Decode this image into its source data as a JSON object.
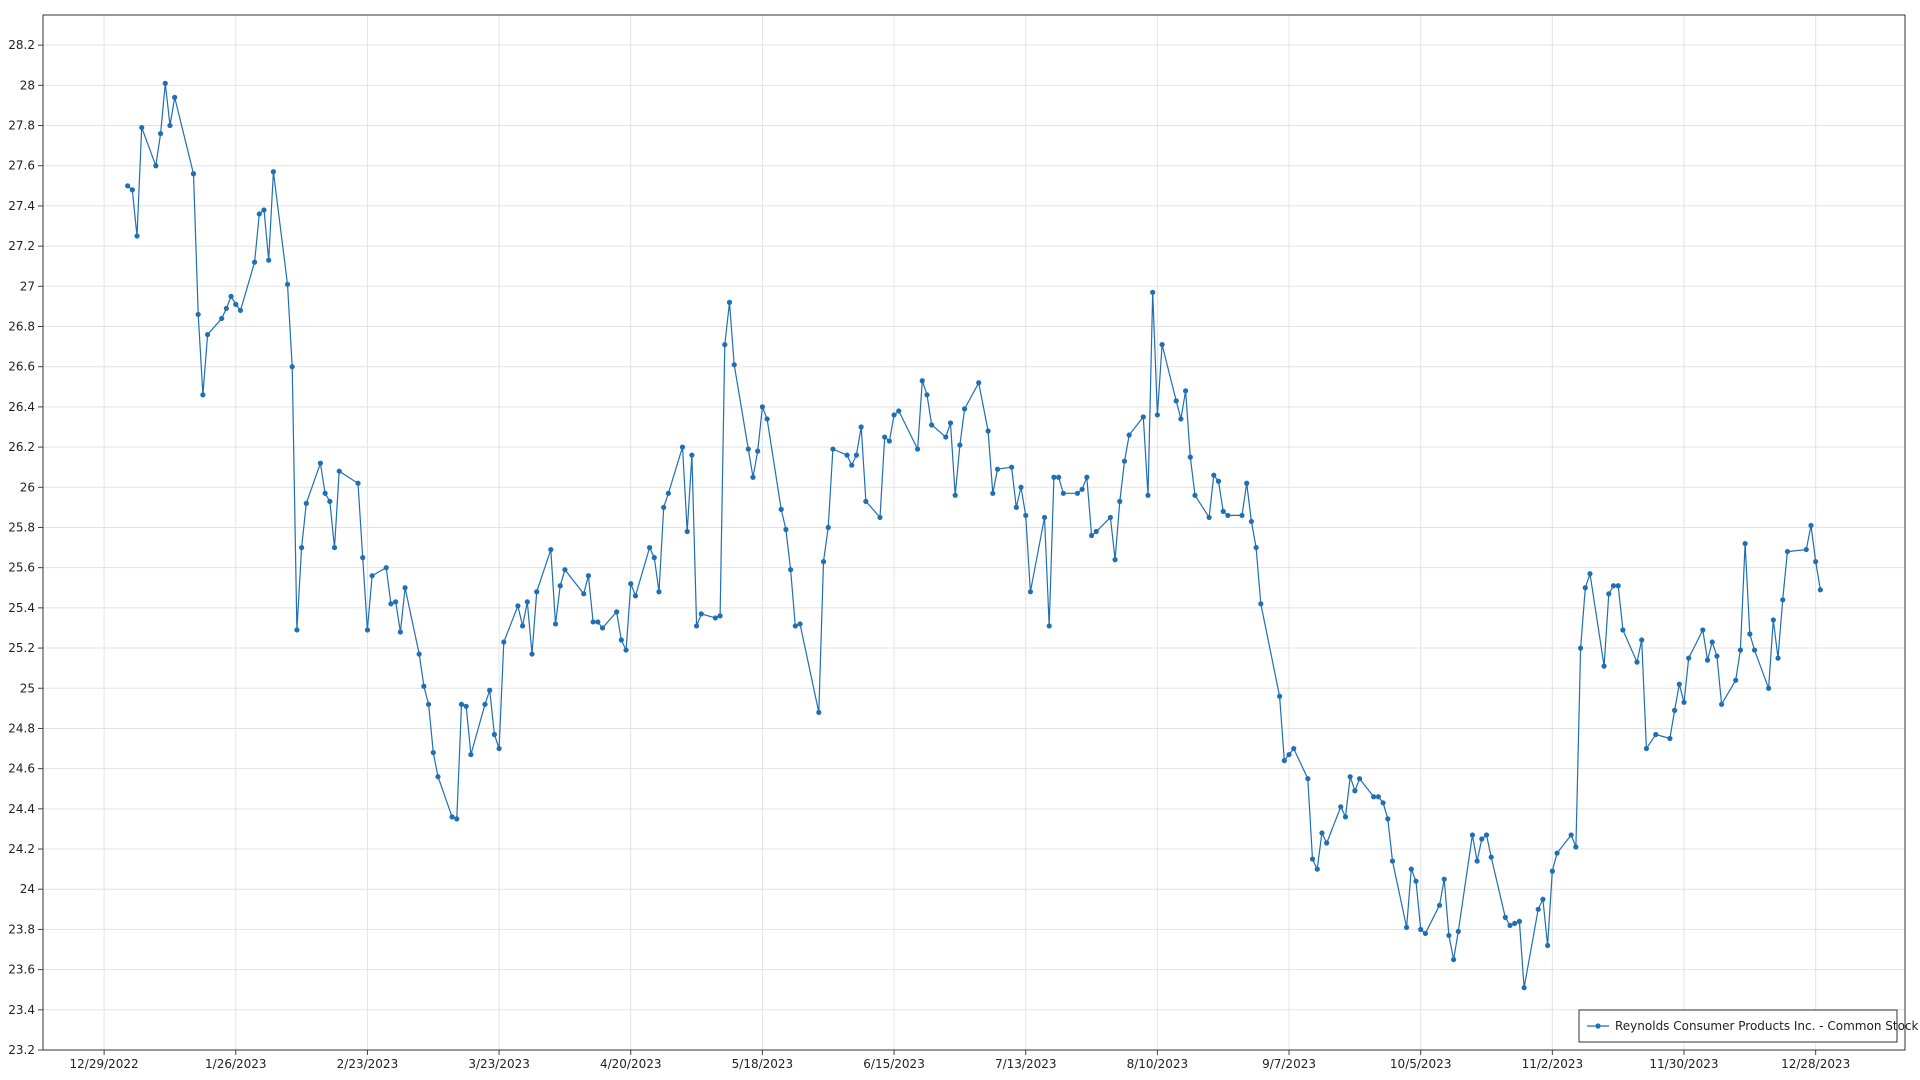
{
  "chart_data": {
    "type": "line",
    "grid": true,
    "legend": "lower right",
    "xlim": [
      "12/16/2022",
      "1/16/2024"
    ],
    "xticks": [
      "12/29/2022",
      "1/26/2023",
      "2/23/2023",
      "3/23/2023",
      "4/20/2023",
      "5/18/2023",
      "6/15/2023",
      "7/13/2023",
      "8/10/2023",
      "9/7/2023",
      "10/5/2023",
      "11/2/2023",
      "11/30/2023",
      "12/28/2023"
    ],
    "ylim": [
      23.2,
      28.35
    ],
    "yticks": [
      23.2,
      23.4,
      23.6,
      23.8,
      24,
      24.2,
      24.4,
      24.6,
      24.8,
      25,
      25.2,
      25.4,
      25.6,
      25.8,
      26,
      26.2,
      26.4,
      26.6,
      26.8,
      27,
      27.2,
      27.4,
      27.6,
      27.8,
      28,
      28.2
    ],
    "series": [
      {
        "name": "Reynolds Consumer Products Inc. - Common Stock",
        "color": "#1f6fb4",
        "x": [
          "1/3/2023",
          "1/4/2023",
          "1/5/2023",
          "1/6/2023",
          "1/9/2023",
          "1/10/2023",
          "1/11/2023",
          "1/12/2023",
          "1/13/2023",
          "1/17/2023",
          "1/18/2023",
          "1/19/2023",
          "1/20/2023",
          "1/23/2023",
          "1/24/2023",
          "1/25/2023",
          "1/26/2023",
          "1/27/2023",
          "1/30/2023",
          "1/31/2023",
          "2/1/2023",
          "2/2/2023",
          "2/3/2023",
          "2/6/2023",
          "2/7/2023",
          "2/8/2023",
          "2/9/2023",
          "2/10/2023",
          "2/13/2023",
          "2/14/2023",
          "2/15/2023",
          "2/16/2023",
          "2/17/2023",
          "2/21/2023",
          "2/22/2023",
          "2/23/2023",
          "2/24/2023",
          "2/27/2023",
          "2/28/2023",
          "3/1/2023",
          "3/2/2023",
          "3/3/2023",
          "3/6/2023",
          "3/7/2023",
          "3/8/2023",
          "3/9/2023",
          "3/10/2023",
          "3/13/2023",
          "3/14/2023",
          "3/15/2023",
          "3/16/2023",
          "3/17/2023",
          "3/20/2023",
          "3/21/2023",
          "3/22/2023",
          "3/23/2023",
          "3/24/2023",
          "3/27/2023",
          "3/28/2023",
          "3/29/2023",
          "3/30/2023",
          "3/31/2023",
          "4/3/2023",
          "4/4/2023",
          "4/5/2023",
          "4/6/2023",
          "4/10/2023",
          "4/11/2023",
          "4/12/2023",
          "4/13/2023",
          "4/14/2023",
          "4/17/2023",
          "4/18/2023",
          "4/19/2023",
          "4/20/2023",
          "4/21/2023",
          "4/24/2023",
          "4/25/2023",
          "4/26/2023",
          "4/27/2023",
          "4/28/2023",
          "5/1/2023",
          "5/2/2023",
          "5/3/2023",
          "5/4/2023",
          "5/5/2023",
          "5/8/2023",
          "5/9/2023",
          "5/10/2023",
          "5/11/2023",
          "5/12/2023",
          "5/15/2023",
          "5/16/2023",
          "5/17/2023",
          "5/18/2023",
          "5/19/2023",
          "5/22/2023",
          "5/23/2023",
          "5/24/2023",
          "5/25/2023",
          "5/26/2023",
          "5/30/2023",
          "5/31/2023",
          "6/1/2023",
          "6/2/2023",
          "6/5/2023",
          "6/6/2023",
          "6/7/2023",
          "6/8/2023",
          "6/9/2023",
          "6/12/2023",
          "6/13/2023",
          "6/14/2023",
          "6/15/2023",
          "6/16/2023",
          "6/20/2023",
          "6/21/2023",
          "6/22/2023",
          "6/23/2023",
          "6/26/2023",
          "6/27/2023",
          "6/28/2023",
          "6/29/2023",
          "6/30/2023",
          "7/3/2023",
          "7/5/2023",
          "7/6/2023",
          "7/7/2023",
          "7/10/2023",
          "7/11/2023",
          "7/12/2023",
          "7/13/2023",
          "7/14/2023",
          "7/17/2023",
          "7/18/2023",
          "7/19/2023",
          "7/20/2023",
          "7/21/2023",
          "7/24/2023",
          "7/25/2023",
          "7/26/2023",
          "7/27/2023",
          "7/28/2023",
          "7/31/2023",
          "8/1/2023",
          "8/2/2023",
          "8/3/2023",
          "8/4/2023",
          "8/7/2023",
          "8/8/2023",
          "8/9/2023",
          "8/10/2023",
          "8/11/2023",
          "8/14/2023",
          "8/15/2023",
          "8/16/2023",
          "8/17/2023",
          "8/18/2023",
          "8/21/2023",
          "8/22/2023",
          "8/23/2023",
          "8/24/2023",
          "8/25/2023",
          "8/28/2023",
          "8/29/2023",
          "8/30/2023",
          "8/31/2023",
          "9/1/2023",
          "9/5/2023",
          "9/6/2023",
          "9/7/2023",
          "9/8/2023",
          "9/11/2023",
          "9/12/2023",
          "9/13/2023",
          "9/14/2023",
          "9/15/2023",
          "9/18/2023",
          "9/19/2023",
          "9/20/2023",
          "9/21/2023",
          "9/22/2023",
          "9/25/2023",
          "9/26/2023",
          "9/27/2023",
          "9/28/2023",
          "9/29/2023",
          "10/2/2023",
          "10/3/2023",
          "10/4/2023",
          "10/5/2023",
          "10/6/2023",
          "10/9/2023",
          "10/10/2023",
          "10/11/2023",
          "10/12/2023",
          "10/13/2023",
          "10/16/2023",
          "10/17/2023",
          "10/18/2023",
          "10/19/2023",
          "10/20/2023",
          "10/23/2023",
          "10/24/2023",
          "10/25/2023",
          "10/26/2023",
          "10/27/2023",
          "10/30/2023",
          "10/31/2023",
          "11/1/2023",
          "11/2/2023",
          "11/3/2023",
          "11/6/2023",
          "11/7/2023",
          "11/8/2023",
          "11/9/2023",
          "11/10/2023",
          "11/13/2023",
          "11/14/2023",
          "11/15/2023",
          "11/16/2023",
          "11/17/2023",
          "11/20/2023",
          "11/21/2023",
          "11/22/2023",
          "11/24/2023",
          "11/27/2023",
          "11/28/2023",
          "11/29/2023",
          "11/30/2023",
          "12/1/2023",
          "12/4/2023",
          "12/5/2023",
          "12/6/2023",
          "12/7/2023",
          "12/8/2023",
          "12/11/2023",
          "12/12/2023",
          "12/13/2023",
          "12/14/2023",
          "12/15/2023",
          "12/18/2023",
          "12/19/2023",
          "12/20/2023",
          "12/21/2023",
          "12/22/2023",
          "12/26/2023",
          "12/27/2023",
          "12/28/2023",
          "12/29/2023"
        ],
        "values": [
          27.5,
          27.48,
          27.25,
          27.79,
          27.6,
          27.76,
          28.01,
          27.8,
          27.94,
          27.56,
          26.86,
          26.46,
          26.76,
          26.84,
          26.89,
          26.95,
          26.91,
          26.88,
          27.12,
          27.36,
          27.38,
          27.13,
          27.57,
          27.01,
          26.6,
          25.29,
          25.7,
          25.92,
          26.12,
          25.97,
          25.93,
          25.7,
          26.08,
          26.02,
          25.65,
          25.29,
          25.56,
          25.6,
          25.42,
          25.43,
          25.28,
          25.5,
          25.17,
          25.01,
          24.92,
          24.68,
          24.56,
          24.36,
          24.35,
          24.92,
          24.91,
          24.67,
          24.92,
          24.99,
          24.77,
          24.7,
          25.23,
          25.41,
          25.31,
          25.43,
          25.17,
          25.48,
          25.69,
          25.32,
          25.51,
          25.59,
          25.47,
          25.56,
          25.33,
          25.33,
          25.3,
          25.38,
          25.24,
          25.19,
          25.52,
          25.46,
          25.7,
          25.65,
          25.48,
          25.9,
          25.97,
          26.2,
          25.78,
          26.16,
          25.31,
          25.37,
          25.35,
          25.36,
          26.71,
          26.92,
          26.61,
          26.19,
          26.05,
          26.18,
          26.4,
          26.34,
          25.89,
          25.79,
          25.59,
          25.31,
          25.32,
          24.88,
          25.63,
          25.8,
          26.19,
          26.16,
          26.11,
          26.16,
          26.3,
          25.93,
          25.85,
          26.25,
          26.23,
          26.36,
          26.38,
          26.19,
          26.53,
          26.46,
          26.31,
          26.25,
          26.32,
          25.96,
          26.21,
          26.39,
          26.52,
          26.28,
          25.97,
          26.09,
          26.1,
          25.9,
          26,
          25.86,
          25.48,
          25.85,
          25.31,
          26.05,
          26.05,
          25.97,
          25.97,
          25.99,
          26.05,
          25.76,
          25.78,
          25.85,
          25.64,
          25.93,
          26.13,
          26.26,
          26.35,
          25.96,
          26.97,
          26.36,
          26.71,
          26.43,
          26.34,
          26.48,
          26.15,
          25.96,
          25.85,
          26.06,
          26.03,
          25.88,
          25.86,
          25.86,
          26.02,
          25.83,
          25.7,
          25.42,
          24.96,
          24.64,
          24.67,
          24.7,
          24.55,
          24.15,
          24.1,
          24.28,
          24.23,
          24.41,
          24.36,
          24.56,
          24.49,
          24.55,
          24.46,
          24.46,
          24.43,
          24.35,
          24.14,
          23.81,
          24.1,
          24.04,
          23.8,
          23.78,
          23.92,
          24.05,
          23.77,
          23.65,
          23.79,
          24.27,
          24.14,
          24.25,
          24.27,
          24.16,
          23.86,
          23.82,
          23.83,
          23.84,
          23.51,
          23.9,
          23.95,
          23.72,
          24.09,
          24.18,
          24.27,
          24.21,
          25.2,
          25.5,
          25.57,
          25.11,
          25.47,
          25.51,
          25.51,
          25.29,
          25.13,
          25.24,
          24.7,
          24.77,
          24.75,
          24.89,
          25.02,
          24.93,
          25.15,
          25.29,
          25.14,
          25.23,
          25.16,
          24.92,
          25.04,
          25.19,
          25.72,
          25.27,
          25.19,
          25,
          25.34,
          25.15,
          25.44,
          25.68,
          25.69,
          25.81,
          25.63,
          25.49
        ]
      }
    ]
  }
}
